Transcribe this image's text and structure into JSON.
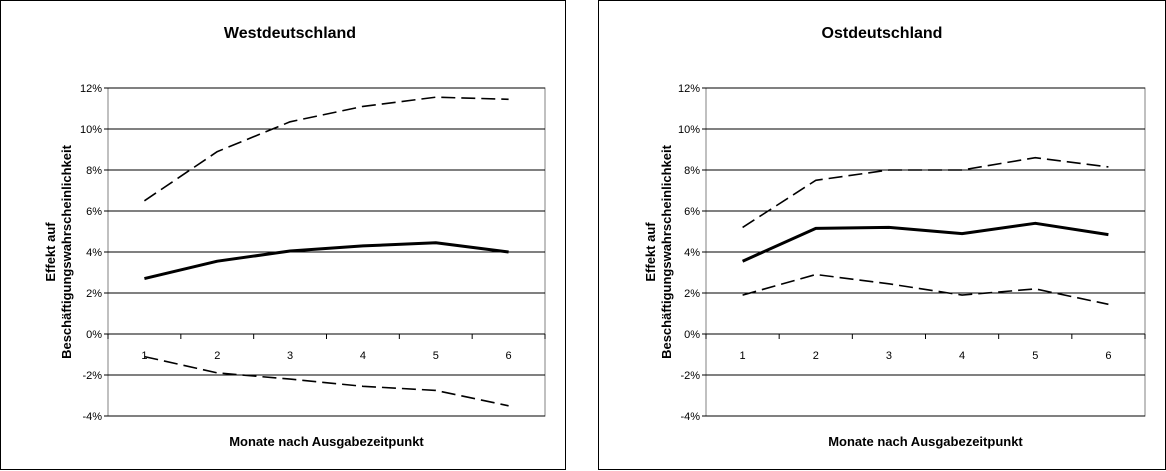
{
  "chart_data": [
    {
      "type": "line",
      "title": "Westdeutschland",
      "xlabel": "Monate nach Ausgabezeitpunkt",
      "ylabel": [
        "Effekt auf",
        "Beschäftigungswahrscheinlichkeit"
      ],
      "categories": [
        "1",
        "2",
        "3",
        "4",
        "5",
        "6"
      ],
      "ylim": [
        -0.04,
        0.12
      ],
      "yticks": [
        "-4%",
        "-2%",
        "0%",
        "2%",
        "4%",
        "6%",
        "8%",
        "10%",
        "12%"
      ],
      "grid": true,
      "legend": "none",
      "series": [
        {
          "style": "dashed",
          "values": [
            0.065,
            0.089,
            0.1035,
            0.111,
            0.1155,
            0.1145
          ]
        },
        {
          "style": "solid",
          "values": [
            0.027,
            0.0355,
            0.0405,
            0.043,
            0.0445,
            0.04
          ]
        },
        {
          "style": "dashed",
          "values": [
            -0.011,
            -0.019,
            -0.022,
            -0.0255,
            -0.0275,
            -0.035
          ]
        }
      ]
    },
    {
      "type": "line",
      "title": "Ostdeutschland",
      "xlabel": "Monate nach Ausgabezeitpunkt",
      "ylabel": [
        "Effekt auf",
        "Beschäftigungswahrscheinlichkeit"
      ],
      "categories": [
        "1",
        "2",
        "3",
        "4",
        "5",
        "6"
      ],
      "ylim": [
        -0.04,
        0.12
      ],
      "yticks": [
        "-4%",
        "-2%",
        "0%",
        "2%",
        "4%",
        "6%",
        "8%",
        "10%",
        "12%"
      ],
      "grid": true,
      "legend": "none",
      "series": [
        {
          "style": "dashed",
          "values": [
            0.052,
            0.075,
            0.08,
            0.08,
            0.086,
            0.0815
          ]
        },
        {
          "style": "solid",
          "values": [
            0.0355,
            0.0515,
            0.052,
            0.049,
            0.054,
            0.0485
          ]
        },
        {
          "style": "dashed",
          "values": [
            0.019,
            0.029,
            0.0245,
            0.019,
            0.022,
            0.0145
          ]
        }
      ]
    }
  ]
}
